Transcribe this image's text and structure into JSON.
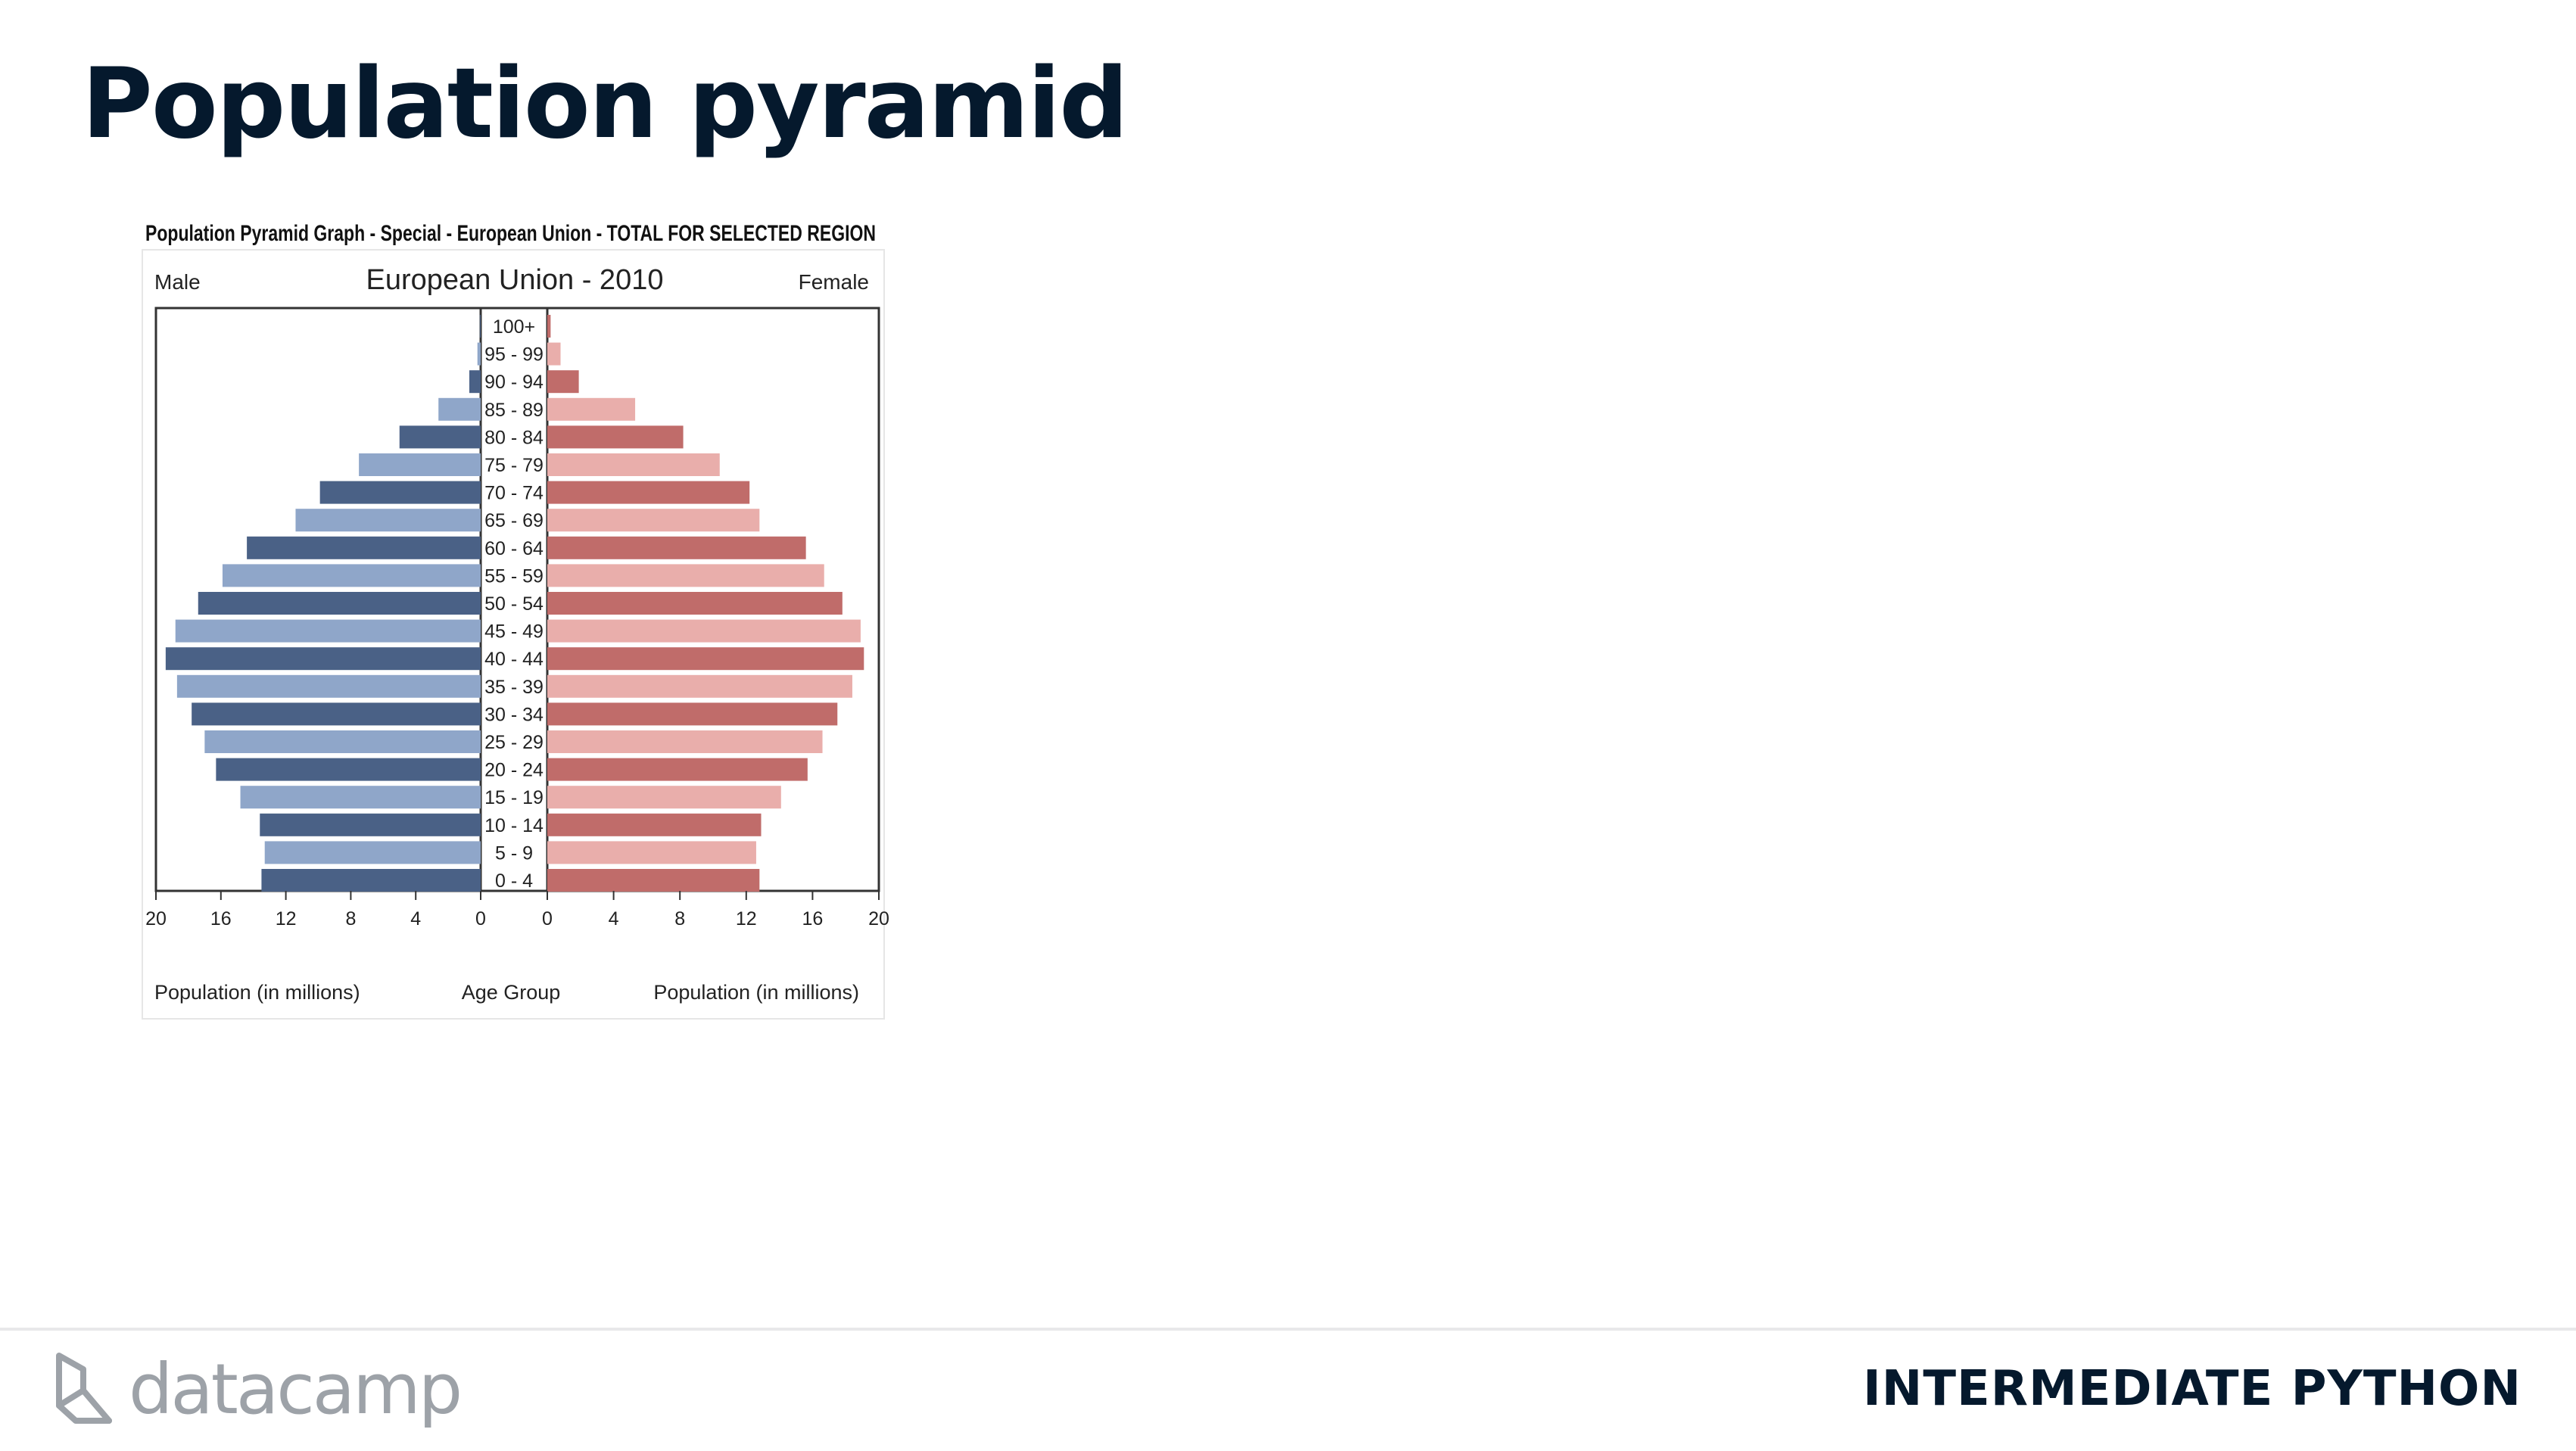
{
  "slide": {
    "title": "Population pyramid",
    "course_name": "INTERMEDIATE PYTHON",
    "brand": "datacamp"
  },
  "chart_data": {
    "type": "bar",
    "orientation": "horizontal-pyramid",
    "title": "Population Pyramid Graph - Special - European Union - TOTAL FOR SELECTED REGION",
    "subtitle": "European Union - 2010",
    "left_label": "Male",
    "right_label": "Female",
    "xlabel_left": "Population (in millions)",
    "xlabel_center": "Age Group",
    "xlabel_right": "Population (in millions)",
    "xlim": [
      0,
      20
    ],
    "xticks": [
      0,
      4,
      8,
      12,
      16,
      20
    ],
    "categories": [
      "100+",
      "95 - 99",
      "90 - 94",
      "85 - 89",
      "80 - 84",
      "75 - 79",
      "70 - 74",
      "65 - 69",
      "60 - 64",
      "55 - 59",
      "50 - 54",
      "45 - 49",
      "40 - 44",
      "35 - 39",
      "30 - 34",
      "25 - 29",
      "20 - 24",
      "15 - 19",
      "10 - 14",
      "5 - 9",
      "0 - 4"
    ],
    "series": [
      {
        "name": "Male",
        "values": [
          0.05,
          0.2,
          0.7,
          2.6,
          5.0,
          7.5,
          9.9,
          11.4,
          14.4,
          15.9,
          17.4,
          18.8,
          19.4,
          18.7,
          17.8,
          17.0,
          16.3,
          14.8,
          13.6,
          13.3,
          13.5
        ]
      },
      {
        "name": "Female",
        "values": [
          0.2,
          0.8,
          1.9,
          5.3,
          8.2,
          10.4,
          12.2,
          12.8,
          15.6,
          16.7,
          17.8,
          18.9,
          19.1,
          18.4,
          17.5,
          16.6,
          15.7,
          14.1,
          12.9,
          12.6,
          12.8
        ]
      }
    ],
    "colors": {
      "male_dark": "#4a6186",
      "male_light": "#8fa6c9",
      "female_dark": "#c06c6a",
      "female_light": "#e9aeab"
    },
    "grid": false
  }
}
